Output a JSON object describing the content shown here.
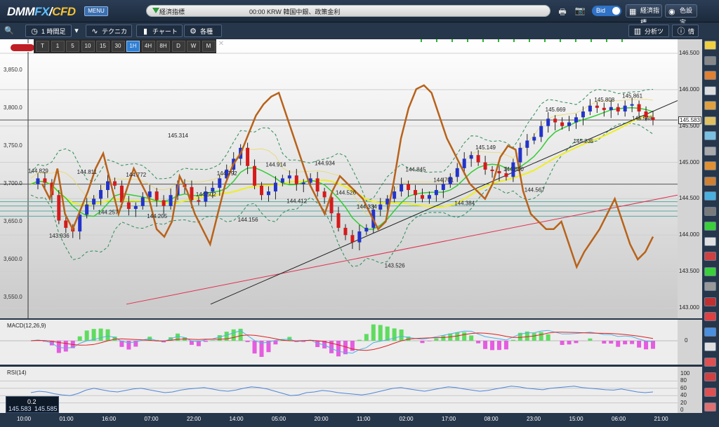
{
  "topbar": {
    "logo": {
      "dmm": "DMM",
      "fx": "FX",
      "slash": "/",
      "cfd": "CFD"
    },
    "menu_label": "MENU",
    "ticker_label": "経済指標",
    "ticker_text": "00:00 KRW 韓国中銀、政策金利",
    "bid_label": "Bid",
    "econ_button": "経済指標",
    "color_button": "色設定"
  },
  "toolbar": {
    "timeframe_label": "1 時間足",
    "technical_label": "テクニカル",
    "chart_type_label": "チャートタイプ",
    "settings_label": "各種設定",
    "analysis_tools_label": "分析ツール",
    "info_label": "情報"
  },
  "timeframes": [
    "T",
    "1",
    "5",
    "10",
    "15",
    "30",
    "1H",
    "4H",
    "8H",
    "D",
    "W",
    "M"
  ],
  "active_timeframe": "1H",
  "quote": {
    "spread": "0.2",
    "bid": "145.583",
    "ask": "145.585"
  },
  "colors": {
    "up": "#2233cc",
    "down": "#d61a1a",
    "stoch": "#b8621a",
    "ma_short": "#33cc33",
    "ma_long": "#eeee22",
    "bb": "#2e8b57",
    "trend_black": "#222222",
    "trend_red": "#e03050"
  },
  "chart_data": [
    {
      "type": "candlestick",
      "panel": "main",
      "y_ticks_right": [
        "146.500",
        "146.000",
        "145.500",
        "145.000",
        "144.500",
        "144.000",
        "143.500",
        "143.000"
      ],
      "y_ticks_left": [
        "3,850.0",
        "3,800.0",
        "3,750.0",
        "3,700.0",
        "3,650.0",
        "3,600.0",
        "3,550.0"
      ],
      "current_price": "145.583",
      "price_labels": [
        {
          "text": "144.829",
          "price": 144.829
        },
        {
          "text": "143.936",
          "price": 143.936
        },
        {
          "text": "144.811",
          "price": 144.811
        },
        {
          "text": "144.257",
          "price": 144.257
        },
        {
          "text": "144.772",
          "price": 144.772
        },
        {
          "text": "144.205",
          "price": 144.205
        },
        {
          "text": "145.314",
          "price": 145.314
        },
        {
          "text": "144.502",
          "price": 144.502
        },
        {
          "text": "144.792",
          "price": 144.792
        },
        {
          "text": "144.156",
          "price": 144.156
        },
        {
          "text": "144.914",
          "price": 144.914
        },
        {
          "text": "144.412",
          "price": 144.412
        },
        {
          "text": "144.934",
          "price": 144.934
        },
        {
          "text": "144.526",
          "price": 144.526
        },
        {
          "text": "144.334",
          "price": 144.334
        },
        {
          "text": "143.526",
          "price": 143.526
        },
        {
          "text": "144.845",
          "price": 144.845
        },
        {
          "text": "144.701",
          "price": 144.701
        },
        {
          "text": "144.384",
          "price": 144.384
        },
        {
          "text": "145.149",
          "price": 145.149
        },
        {
          "text": "144.850",
          "price": 144.85
        },
        {
          "text": "144.567",
          "price": 144.567
        },
        {
          "text": "145.669",
          "price": 145.669
        },
        {
          "text": "145.235",
          "price": 145.235
        },
        {
          "text": "145.808",
          "price": 145.808
        },
        {
          "text": "145.861",
          "price": 145.861
        },
        {
          "text": "145.548",
          "price": 145.548
        }
      ],
      "close_series": [
        144.7,
        144.78,
        144.72,
        144.55,
        144.2,
        144.1,
        144.05,
        144.28,
        144.42,
        144.5,
        144.62,
        144.74,
        144.68,
        144.45,
        144.36,
        144.4,
        144.52,
        144.6,
        144.48,
        144.4,
        144.55,
        144.7,
        144.66,
        144.48,
        144.46,
        144.6,
        144.65,
        144.78,
        144.9,
        145.05,
        145.2,
        144.95,
        144.68,
        144.55,
        144.6,
        144.72,
        144.78,
        144.82,
        144.7,
        144.72,
        144.78,
        144.6,
        144.52,
        144.3,
        144.1,
        144.0,
        143.9,
        144.05,
        144.1,
        144.35,
        144.42,
        144.5,
        144.6,
        144.7,
        144.62,
        144.55,
        144.5,
        144.55,
        144.62,
        144.7,
        144.8,
        144.92,
        145.05,
        145.1,
        145.0,
        144.9,
        144.88,
        144.85,
        144.8,
        145.0,
        145.2,
        145.3,
        145.35,
        145.5,
        145.6,
        145.55,
        145.5,
        145.55,
        145.62,
        145.7,
        145.78,
        145.75,
        145.72,
        145.76,
        145.7,
        145.78,
        145.8,
        145.7,
        145.62,
        145.58
      ],
      "stoch_series": [
        3700,
        3680,
        3720,
        3660,
        3640,
        3665,
        3690,
        3720,
        3740,
        3700,
        3660,
        3690,
        3720,
        3700,
        3680,
        3640,
        3630,
        3650,
        3710,
        3690,
        3660,
        3640,
        3620,
        3660,
        3700,
        3725,
        3740,
        3765,
        3790,
        3805,
        3815,
        3820,
        3790,
        3760,
        3730,
        3700,
        3680,
        3660,
        3690,
        3710,
        3700,
        3690,
        3680,
        3660,
        3640,
        3650,
        3700,
        3760,
        3800,
        3825,
        3830,
        3820,
        3790,
        3760,
        3740,
        3720,
        3700,
        3690,
        3680,
        3700,
        3735,
        3750,
        3745,
        3690,
        3660,
        3650,
        3640,
        3640,
        3650,
        3620,
        3590,
        3610,
        3625,
        3640,
        3660,
        3680,
        3650,
        3620,
        3600,
        3610,
        3630
      ]
    },
    {
      "type": "line",
      "panel": "macd",
      "title": "MACD(12,26,9)",
      "y_ticks": [
        "0"
      ]
    },
    {
      "type": "line",
      "panel": "rsi",
      "title": "RSI(14)",
      "y_ticks": [
        "100",
        "80",
        "60",
        "40",
        "20",
        "0"
      ],
      "values": [
        48,
        52,
        50,
        45,
        42,
        40,
        46,
        55,
        60,
        56,
        52,
        50,
        54,
        58,
        60,
        56,
        52,
        48,
        50,
        55,
        58,
        60,
        62,
        58,
        54,
        52,
        55,
        60,
        64,
        62,
        58,
        52,
        46,
        40,
        42,
        48,
        50,
        54,
        52,
        48,
        46,
        44,
        42,
        45,
        50,
        55,
        60,
        62,
        58,
        55,
        52,
        56,
        60,
        64,
        62,
        58,
        55,
        52,
        54,
        58,
        62,
        66,
        64,
        60,
        58,
        56,
        60,
        62,
        64,
        66,
        62,
        60,
        58,
        56,
        55,
        58,
        54,
        50,
        48,
        50
      ]
    }
  ],
  "time_axis": [
    "10:00",
    "01:00",
    "16:00",
    "07:00",
    "22:00",
    "14:00",
    "05:00",
    "20:00",
    "11:00",
    "02:00",
    "17:00",
    "08:00",
    "23:00",
    "15:00",
    "06:00",
    "21:00"
  ]
}
